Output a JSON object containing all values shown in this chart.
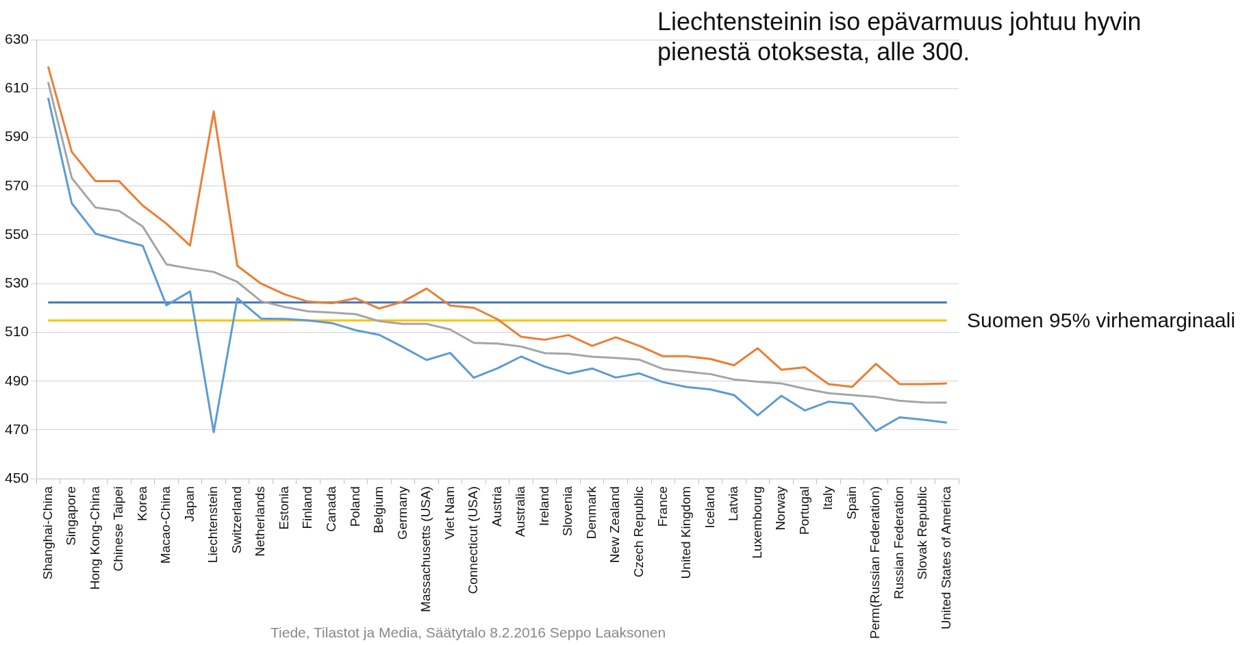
{
  "chart_data": {
    "type": "line",
    "categories": [
      "Shanghai-China",
      "Singapore",
      "Hong Kong-China",
      "Chinese Taipei",
      "Korea",
      "Macao-China",
      "Japan",
      "Liechtenstein",
      "Switzerland",
      "Netherlands",
      "Estonia",
      "Finland",
      "Canada",
      "Poland",
      "Belgium",
      "Germany",
      "Massachusetts (USA)",
      "Viet Nam",
      "Connecticut (USA)",
      "Austria",
      "Australia",
      "Ireland",
      "Slovenia",
      "Denmark",
      "New Zealand",
      "Czech Republic",
      "France",
      "United Kingdom",
      "Iceland",
      "Latvia",
      "Luxembourg",
      "Norway",
      "Portugal",
      "Italy",
      "Spain",
      "Perm(Russian Federation)",
      "Russian Federation",
      "Slovak Republic",
      "United States of America"
    ],
    "series": [
      {
        "color": "#ed7d31",
        "values": [
          619,
          584,
          572,
          572,
          562,
          554.6,
          545.6,
          600.6,
          537.3,
          530,
          525.6,
          522.6,
          522,
          524,
          519.8,
          522.6,
          528,
          521,
          520.1,
          515.4,
          508.2,
          507,
          508.9,
          504.5,
          508,
          504.5,
          500.2,
          500.2,
          499.1,
          496.5,
          503.5,
          494.7,
          495.7,
          488.8,
          487.7,
          497.1,
          488.8,
          488.8,
          489.1
        ]
      },
      {
        "color": "#a5a5a5",
        "values": [
          612.6,
          573.3,
          561.2,
          559.8,
          553.4,
          537.9,
          536.2,
          534.8,
          530.7,
          522.8,
          520.4,
          518.6,
          518.1,
          517.5,
          514.6,
          513.5,
          513.5,
          511.2,
          505.7,
          505.4,
          504.2,
          501.5,
          501.2,
          500,
          499.5,
          498.8,
          495,
          493.9,
          492.9,
          490.7,
          489.8,
          489.1,
          486.9,
          485.1,
          484.3,
          483.5,
          482,
          481.3,
          481.2
        ]
      },
      {
        "color": "#5b9bd5",
        "values": [
          606.2,
          562.9,
          550.5,
          547.8,
          545.5,
          521.1,
          526.8,
          469.1,
          524,
          515.7,
          515.5,
          514.9,
          513.8,
          510.9,
          509,
          504,
          498.7,
          501.6,
          491.4,
          495.3,
          500.1,
          496,
          493.1,
          495.2,
          491.5,
          493.2,
          489.6,
          487.6,
          486.6,
          484.3,
          476,
          484,
          478,
          481.6,
          480.7,
          469.6,
          475.2,
          474.2,
          473
        ]
      }
    ],
    "ylim": [
      450,
      630
    ],
    "yticks": [
      450,
      470,
      490,
      510,
      530,
      550,
      570,
      590,
      610,
      630
    ],
    "grid": "y",
    "legend": false,
    "marker": "none",
    "line_style": "solid",
    "ref_lines": [
      {
        "axis": "y",
        "value": 522.3,
        "color": "#4472c4"
      },
      {
        "axis": "y",
        "value": 514.9,
        "color": "#ffc000",
        "label": "Suomen 95% virhemarginaali"
      }
    ],
    "annotations": [
      "Liechtensteinin iso epävarmuus johtuu hyvin pienestä otoksesta, alle 300.",
      "Tiede, Tilastot ja Media, Säätytalo 8.2.2016 Seppo Laaksonen"
    ]
  }
}
